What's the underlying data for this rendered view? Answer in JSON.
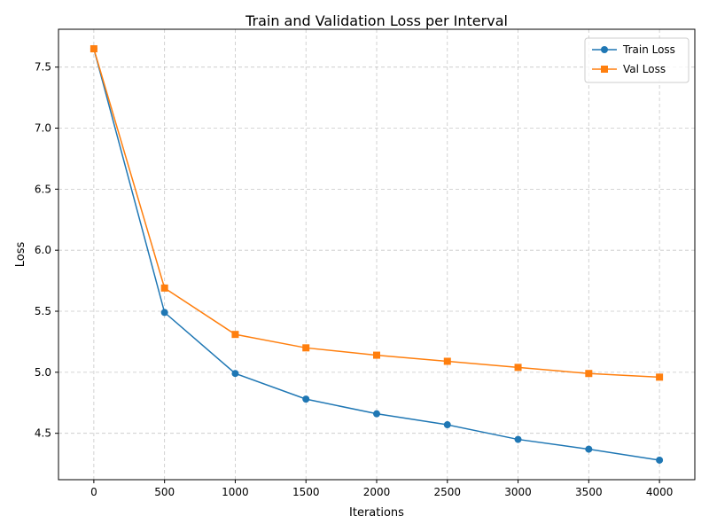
{
  "chart_data": {
    "type": "line",
    "title": "Train and Validation Loss per Interval",
    "xlabel": "Iterations",
    "ylabel": "Loss",
    "x": [
      0,
      500,
      1000,
      1500,
      2000,
      2500,
      3000,
      3500,
      4000
    ],
    "series": [
      {
        "name": "Train Loss",
        "color": "#1f77b4",
        "marker": "circle",
        "values": [
          7.65,
          5.49,
          4.99,
          4.78,
          4.66,
          4.57,
          4.45,
          4.37,
          4.28
        ]
      },
      {
        "name": "Val Loss",
        "color": "#ff7f0e",
        "marker": "square",
        "values": [
          7.65,
          5.69,
          5.31,
          5.2,
          5.14,
          5.09,
          5.04,
          4.99,
          4.96
        ]
      }
    ],
    "xlim": [
      -250,
      4250
    ],
    "ylim": [
      4.12,
      7.81
    ],
    "xticks": [
      0,
      500,
      1000,
      1500,
      2000,
      2500,
      3000,
      3500,
      4000
    ],
    "xtick_labels": [
      "0",
      "500",
      "1000",
      "1500",
      "2000",
      "2500",
      "3000",
      "3500",
      "4000"
    ],
    "yticks": [
      4.5,
      5.0,
      5.5,
      6.0,
      6.5,
      7.0,
      7.5
    ],
    "ytick_labels": [
      "4.5",
      "5.0",
      "5.5",
      "6.0",
      "6.5",
      "7.0",
      "7.5"
    ],
    "grid": true,
    "legend": "top-right"
  }
}
